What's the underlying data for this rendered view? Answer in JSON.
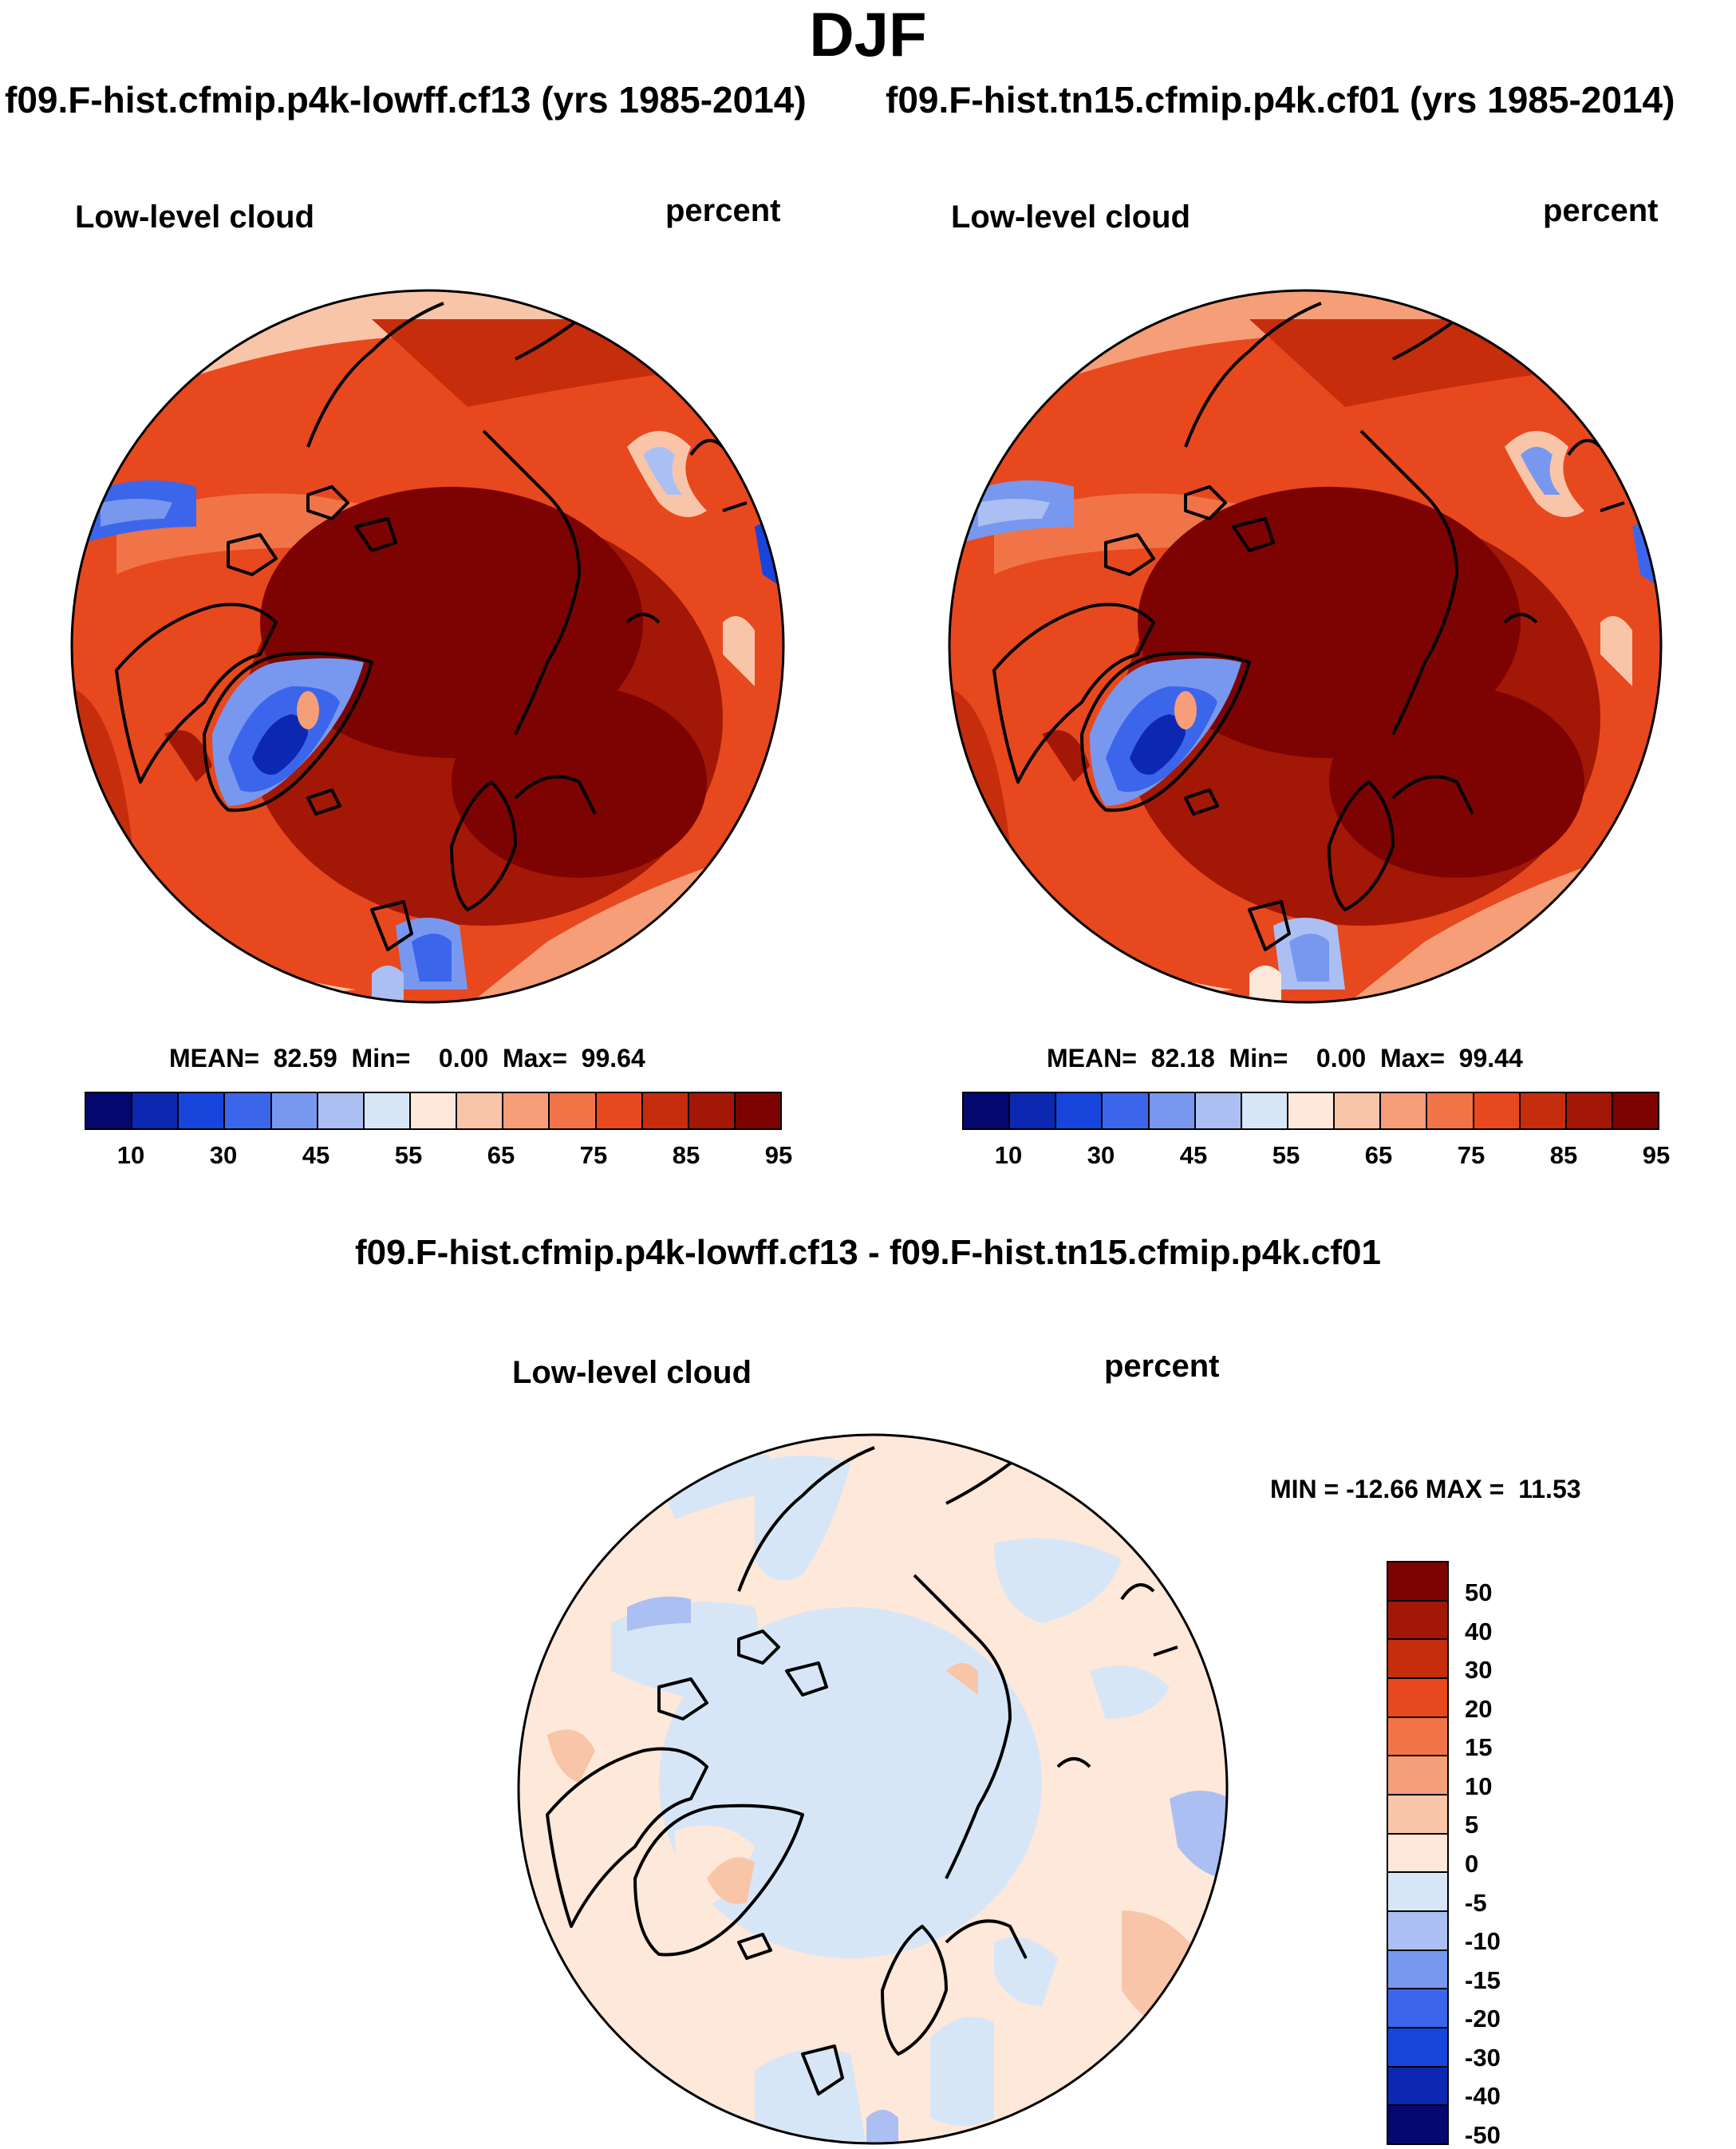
{
  "title": "DJF",
  "panels": [
    {
      "run_title": "f09.F-hist.cfmip.p4k-lowff.cf13 (yrs 1985-2014)",
      "variable": "Low-level cloud",
      "units": "percent",
      "stats": "MEAN=  82.59  Min=    0.00  Max=  99.64",
      "mean": 82.59,
      "min": 0.0,
      "max": 99.64
    },
    {
      "run_title": "f09.F-hist.tn15.cfmip.p4k.cf01 (yrs 1985-2014)",
      "variable": "Low-level cloud",
      "units": "percent",
      "stats": "MEAN=  82.18  Min=    0.00  Max=  99.44",
      "mean": 82.18,
      "min": 0.0,
      "max": 99.44
    }
  ],
  "difference": {
    "title": "f09.F-hist.cfmip.p4k-lowff.cf13 - f09.F-hist.tn15.cfmip.p4k.cf01",
    "variable": "Low-level cloud",
    "units": "percent",
    "stats": "MIN = -12.66 MAX =  11.53",
    "min": -12.66,
    "max": 11.53
  },
  "colorbar_main": {
    "labels": [
      "10",
      "30",
      "45",
      "55",
      "65",
      "75",
      "85",
      "95"
    ],
    "colors": [
      "#05086e",
      "#0c27b0",
      "#1744db",
      "#3b66eb",
      "#7898f0",
      "#abbff2",
      "#d7e6f7",
      "#fde8da",
      "#f9c5a8",
      "#f59e78",
      "#f07448",
      "#e8481e",
      "#c62d0c",
      "#a31707",
      "#7d0303"
    ]
  },
  "colorbar_diff": {
    "labels": [
      "50",
      "40",
      "30",
      "20",
      "15",
      "10",
      "5",
      "0",
      "-5",
      "-10",
      "-15",
      "-20",
      "-30",
      "-40",
      "-50"
    ],
    "colors": [
      "#7d0303",
      "#a31707",
      "#c62d0c",
      "#e8481e",
      "#f07448",
      "#f59e78",
      "#f9c5a8",
      "#fde8da",
      "#d7e6f7",
      "#abbff2",
      "#7898f0",
      "#3b66eb",
      "#1744db",
      "#0c27b0",
      "#05086e"
    ]
  }
}
